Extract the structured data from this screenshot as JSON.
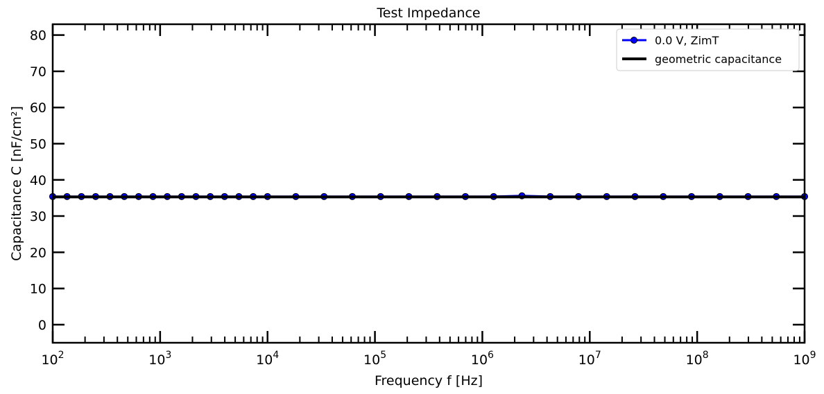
{
  "chart_data": {
    "type": "line",
    "title": "Test Impedance",
    "xlabel": "Frequency  f  [Hz]",
    "ylabel": "Capacitance  C  [nF/cm²]",
    "xscale": "log",
    "xlim": [
      100,
      1000000000
    ],
    "ylim": [
      -5,
      83
    ],
    "x_ticks": [
      2,
      3,
      4,
      5,
      6,
      7,
      8,
      9
    ],
    "y_ticks": [
      0,
      10,
      20,
      30,
      40,
      50,
      60,
      70,
      80
    ],
    "grid": false,
    "legend_position": "top-right",
    "series": [
      {
        "name": "0.0 V, ZimT",
        "color": "#0000ff",
        "marker": "circle",
        "x": [
          100,
          136,
          185,
          251,
          341,
          464,
          631,
          858,
          1166,
          1585,
          2154,
          2929,
          3981,
          5412,
          7356,
          10000,
          18330,
          33600,
          61580,
          112900,
          206900,
          379300,
          695200,
          1274000,
          2336000,
          4281000,
          7848000,
          14380000,
          26370000,
          48330000,
          88590000,
          162400000,
          297600000,
          545600000,
          1000000000
        ],
        "values": [
          35.4,
          35.4,
          35.4,
          35.4,
          35.4,
          35.4,
          35.4,
          35.4,
          35.4,
          35.4,
          35.4,
          35.4,
          35.4,
          35.4,
          35.4,
          35.4,
          35.4,
          35.4,
          35.4,
          35.4,
          35.4,
          35.4,
          35.4,
          35.4,
          35.6,
          35.4,
          35.4,
          35.4,
          35.4,
          35.4,
          35.4,
          35.4,
          35.4,
          35.4,
          35.4
        ]
      },
      {
        "name": "geometric capacitance",
        "color": "#000000",
        "marker": "none",
        "x": [
          100,
          1000000000
        ],
        "values": [
          35.3,
          35.3
        ]
      }
    ]
  }
}
